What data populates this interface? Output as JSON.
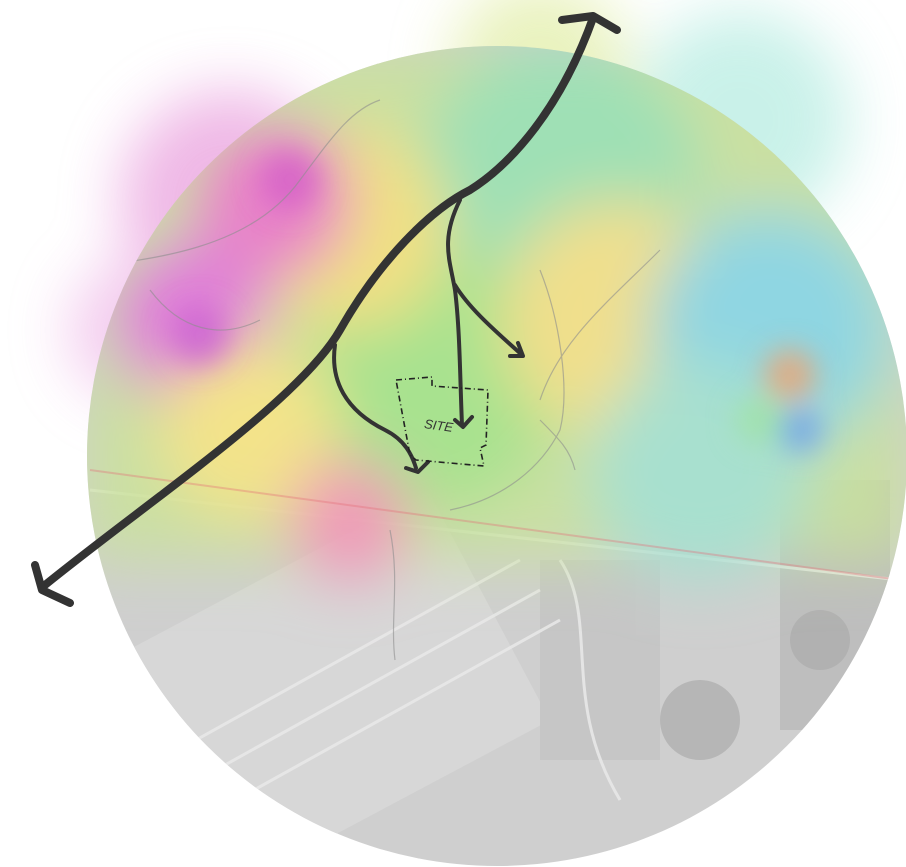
{
  "map": {
    "site_label": "SITE"
  }
}
